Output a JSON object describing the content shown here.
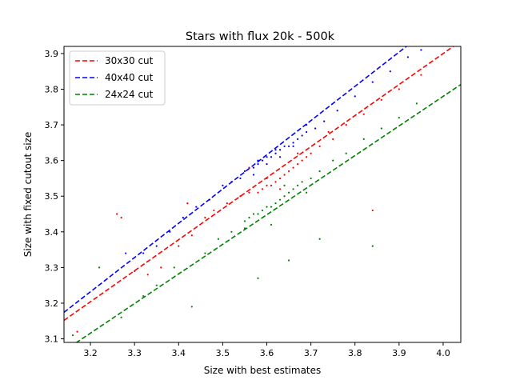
{
  "chart_data": {
    "type": "scatter",
    "title": "Stars with flux 20k - 500k",
    "xlabel": "Size with best estimates",
    "ylabel": "Size with fixed cutout size",
    "xlim": [
      3.14,
      4.04
    ],
    "ylim": [
      3.09,
      3.92
    ],
    "x_ticks": [
      "3.2",
      "3.3",
      "3.4",
      "3.5",
      "3.6",
      "3.7",
      "3.8",
      "3.9",
      "4.0"
    ],
    "y_ticks": [
      "3.1",
      "3.2",
      "3.3",
      "3.4",
      "3.5",
      "3.6",
      "3.7",
      "3.8",
      "3.9"
    ],
    "legend_position": "top-left",
    "grid": false,
    "fit_lines": [
      {
        "name": "30x30 cut",
        "color": "#ff0000",
        "slope": 0.87,
        "intercept": 0.42
      },
      {
        "name": "40x40 cut",
        "color": "#0000ff",
        "slope": 0.96,
        "intercept": 0.16
      },
      {
        "name": "24x24 cut",
        "color": "#008000",
        "slope": 0.83,
        "intercept": 0.46
      }
    ],
    "series": [
      {
        "color": "#0000ff",
        "points": [
          [
            3.28,
            3.34
          ],
          [
            3.32,
            3.34
          ],
          [
            3.35,
            3.36
          ],
          [
            3.38,
            3.4
          ],
          [
            3.41,
            3.44
          ],
          [
            3.44,
            3.47
          ],
          [
            3.47,
            3.49
          ],
          [
            3.5,
            3.53
          ],
          [
            3.52,
            3.54
          ],
          [
            3.54,
            3.55
          ],
          [
            3.55,
            3.57
          ],
          [
            3.56,
            3.58
          ],
          [
            3.57,
            3.58
          ],
          [
            3.58,
            3.59
          ],
          [
            3.59,
            3.6
          ],
          [
            3.6,
            3.61
          ],
          [
            3.61,
            3.61
          ],
          [
            3.62,
            3.62
          ],
          [
            3.63,
            3.63
          ],
          [
            3.64,
            3.64
          ],
          [
            3.65,
            3.64
          ],
          [
            3.66,
            3.65
          ],
          [
            3.67,
            3.66
          ],
          [
            3.68,
            3.67
          ],
          [
            3.69,
            3.68
          ],
          [
            3.71,
            3.69
          ],
          [
            3.73,
            3.71
          ],
          [
            3.76,
            3.74
          ],
          [
            3.8,
            3.78
          ],
          [
            3.84,
            3.82
          ],
          [
            3.88,
            3.85
          ],
          [
            3.92,
            3.89
          ],
          [
            3.95,
            3.91
          ],
          [
            3.57,
            3.56
          ],
          [
            3.6,
            3.59
          ],
          [
            3.63,
            3.61
          ],
          [
            3.66,
            3.64
          ],
          [
            3.58,
            3.6
          ],
          [
            3.62,
            3.63
          ],
          [
            3.69,
            3.7
          ]
        ]
      },
      {
        "color": "#ff0000",
        "points": [
          [
            3.17,
            3.12
          ],
          [
            3.26,
            3.45
          ],
          [
            3.27,
            3.44
          ],
          [
            3.3,
            3.29
          ],
          [
            3.33,
            3.28
          ],
          [
            3.36,
            3.3
          ],
          [
            3.4,
            3.36
          ],
          [
            3.43,
            3.39
          ],
          [
            3.46,
            3.44
          ],
          [
            3.48,
            3.46
          ],
          [
            3.51,
            3.48
          ],
          [
            3.54,
            3.5
          ],
          [
            3.56,
            3.51
          ],
          [
            3.58,
            3.51
          ],
          [
            3.59,
            3.52
          ],
          [
            3.6,
            3.53
          ],
          [
            3.61,
            3.53
          ],
          [
            3.62,
            3.54
          ],
          [
            3.63,
            3.55
          ],
          [
            3.64,
            3.56
          ],
          [
            3.65,
            3.57
          ],
          [
            3.66,
            3.58
          ],
          [
            3.67,
            3.59
          ],
          [
            3.68,
            3.6
          ],
          [
            3.69,
            3.61
          ],
          [
            3.7,
            3.62
          ],
          [
            3.72,
            3.64
          ],
          [
            3.75,
            3.66
          ],
          [
            3.78,
            3.7
          ],
          [
            3.82,
            3.73
          ],
          [
            3.86,
            3.77
          ],
          [
            3.9,
            3.8
          ],
          [
            3.95,
            3.84
          ],
          [
            3.56,
            3.58
          ],
          [
            3.84,
            3.46
          ],
          [
            3.42,
            3.48
          ],
          [
            3.6,
            3.55
          ],
          [
            3.63,
            3.52
          ],
          [
            3.67,
            3.62
          ],
          [
            3.74,
            3.68
          ]
        ]
      },
      {
        "color": "#008000",
        "points": [
          [
            3.16,
            3.11
          ],
          [
            3.22,
            3.3
          ],
          [
            3.27,
            3.16
          ],
          [
            3.32,
            3.22
          ],
          [
            3.35,
            3.25
          ],
          [
            3.39,
            3.3
          ],
          [
            3.43,
            3.19
          ],
          [
            3.46,
            3.34
          ],
          [
            3.49,
            3.38
          ],
          [
            3.52,
            3.4
          ],
          [
            3.55,
            3.43
          ],
          [
            3.56,
            3.44
          ],
          [
            3.57,
            3.45
          ],
          [
            3.58,
            3.45
          ],
          [
            3.59,
            3.46
          ],
          [
            3.6,
            3.47
          ],
          [
            3.61,
            3.47
          ],
          [
            3.62,
            3.48
          ],
          [
            3.63,
            3.49
          ],
          [
            3.64,
            3.5
          ],
          [
            3.65,
            3.51
          ],
          [
            3.66,
            3.52
          ],
          [
            3.67,
            3.53
          ],
          [
            3.68,
            3.54
          ],
          [
            3.7,
            3.55
          ],
          [
            3.72,
            3.57
          ],
          [
            3.75,
            3.6
          ],
          [
            3.78,
            3.62
          ],
          [
            3.82,
            3.66
          ],
          [
            3.86,
            3.69
          ],
          [
            3.9,
            3.72
          ],
          [
            3.94,
            3.76
          ],
          [
            3.84,
            3.36
          ],
          [
            3.58,
            3.27
          ],
          [
            3.65,
            3.32
          ],
          [
            3.72,
            3.38
          ],
          [
            3.61,
            3.42
          ],
          [
            3.55,
            3.41
          ],
          [
            3.69,
            3.51
          ],
          [
            3.64,
            3.53
          ]
        ]
      }
    ]
  }
}
